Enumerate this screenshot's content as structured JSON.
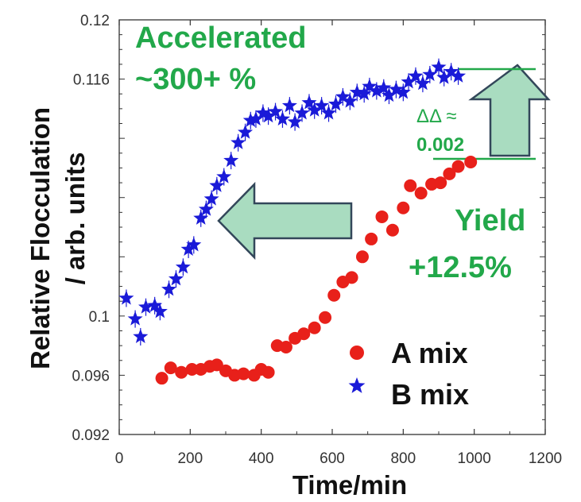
{
  "chart_data": {
    "type": "scatter",
    "xlabel": "Time/min",
    "ylabel_line1": "Relative Flocculation",
    "ylabel_line2": "/ arb. units",
    "xlim": [
      0,
      1200
    ],
    "ylim": [
      0.092,
      0.12
    ],
    "x_ticks": [
      "0",
      "200",
      "400",
      "600",
      "800",
      "1000",
      "1200"
    ],
    "y_ticks": [
      "0.092",
      "0.096",
      "0.1",
      "0.116",
      "0.12"
    ],
    "y_tick_values": [
      0.092,
      0.096,
      0.1,
      0.116,
      0.12
    ],
    "series": [
      {
        "name": "A mix",
        "marker": "circle",
        "color": "#e8201a",
        "points": [
          [
            120,
            0.0958
          ],
          [
            145,
            0.0965
          ],
          [
            175,
            0.0962
          ],
          [
            205,
            0.0964
          ],
          [
            230,
            0.0964
          ],
          [
            255,
            0.0966
          ],
          [
            275,
            0.0967
          ],
          [
            300,
            0.0963
          ],
          [
            325,
            0.096
          ],
          [
            350,
            0.0961
          ],
          [
            380,
            0.096
          ],
          [
            400,
            0.0964
          ],
          [
            420,
            0.0962
          ],
          [
            445,
            0.098
          ],
          [
            470,
            0.0979
          ],
          [
            495,
            0.0985
          ],
          [
            520,
            0.0988
          ],
          [
            550,
            0.0992
          ],
          [
            580,
            0.0999
          ],
          [
            605,
            0.1014
          ],
          [
            630,
            0.1023
          ],
          [
            655,
            0.1026
          ],
          [
            685,
            0.104
          ],
          [
            710,
            0.1052
          ],
          [
            740,
            0.1067
          ],
          [
            770,
            0.1058
          ],
          [
            800,
            0.1073
          ],
          [
            820,
            0.1088
          ],
          [
            850,
            0.1083
          ],
          [
            880,
            0.1089
          ],
          [
            905,
            0.109
          ],
          [
            930,
            0.1096
          ],
          [
            955,
            0.1101
          ],
          [
            990,
            0.1104
          ]
        ]
      },
      {
        "name": "B mix",
        "marker": "star",
        "color": "#1a1ad8",
        "points": [
          [
            20,
            0.1012
          ],
          [
            45,
            0.0998
          ],
          [
            60,
            0.0986
          ],
          [
            75,
            0.1006
          ],
          [
            100,
            0.1007
          ],
          [
            115,
            0.1003
          ],
          [
            140,
            0.1018
          ],
          [
            160,
            0.1025
          ],
          [
            180,
            0.1033
          ],
          [
            195,
            0.1045
          ],
          [
            210,
            0.1048
          ],
          [
            230,
            0.1066
          ],
          [
            245,
            0.1072
          ],
          [
            260,
            0.1079
          ],
          [
            275,
            0.1088
          ],
          [
            295,
            0.1094
          ],
          [
            315,
            0.1105
          ],
          [
            335,
            0.1117
          ],
          [
            355,
            0.1124
          ],
          [
            370,
            0.1132
          ],
          [
            385,
            0.1133
          ],
          [
            405,
            0.1137
          ],
          [
            420,
            0.1135
          ],
          [
            440,
            0.1138
          ],
          [
            460,
            0.1133
          ],
          [
            480,
            0.1142
          ],
          [
            495,
            0.1131
          ],
          [
            515,
            0.1137
          ],
          [
            535,
            0.1144
          ],
          [
            550,
            0.1139
          ],
          [
            570,
            0.1142
          ],
          [
            590,
            0.1137
          ],
          [
            610,
            0.1143
          ],
          [
            630,
            0.1148
          ],
          [
            650,
            0.1145
          ],
          [
            670,
            0.1151
          ],
          [
            690,
            0.115
          ],
          [
            705,
            0.1155
          ],
          [
            725,
            0.1152
          ],
          [
            745,
            0.1154
          ],
          [
            760,
            0.1149
          ],
          [
            780,
            0.1153
          ],
          [
            800,
            0.1151
          ],
          [
            815,
            0.1158
          ],
          [
            835,
            0.1162
          ],
          [
            855,
            0.1157
          ],
          [
            875,
            0.1163
          ],
          [
            900,
            0.1168
          ],
          [
            915,
            0.1161
          ],
          [
            935,
            0.1165
          ],
          [
            955,
            0.1162
          ]
        ]
      }
    ],
    "annotations": {
      "accelerated_line1": "Accelerated",
      "accelerated_line2": "~300+ %",
      "yield_line1": "Yield",
      "yield_line2": "+12.5%",
      "delta_line1": "ΔΔ ≈",
      "delta_line2": "0.002"
    },
    "legend": {
      "position": "lower-right",
      "entries": [
        "A mix",
        "B mix"
      ]
    },
    "colors": {
      "annotation_green": "#22a84a",
      "arrow_fill": "#a9dcc0",
      "arrow_stroke": "#33475a"
    }
  }
}
